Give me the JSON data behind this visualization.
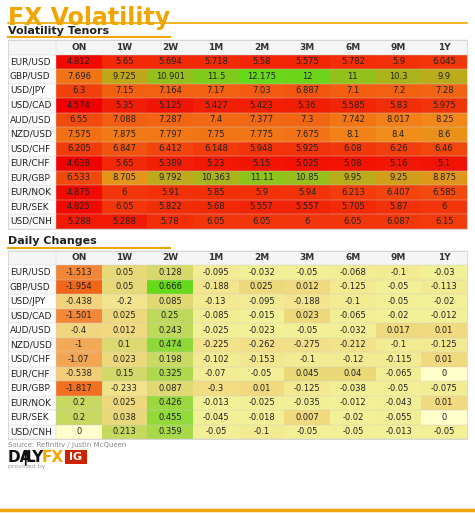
{
  "title": "FX Volatility",
  "section1": "Volatility Tenors",
  "section2": "Daily Changes",
  "col_headers": [
    "ON",
    "1W",
    "2W",
    "1M",
    "2M",
    "3M",
    "6M",
    "9M",
    "1Y"
  ],
  "vol_rows": [
    {
      "pair": "EUR/USD",
      "vals": [
        4.812,
        5.65,
        5.694,
        5.718,
        5.58,
        5.575,
        5.782,
        5.9,
        6.045
      ]
    },
    {
      "pair": "GBP/USD",
      "vals": [
        7.696,
        9.725,
        10.901,
        11.5,
        12.175,
        12,
        11,
        10.3,
        9.9
      ]
    },
    {
      "pair": "USD/JPY",
      "vals": [
        6.3,
        7.15,
        7.164,
        7.17,
        7.03,
        6.887,
        7.1,
        7.2,
        7.28
      ]
    },
    {
      "pair": "USD/CAD",
      "vals": [
        4.574,
        5.35,
        5.125,
        5.427,
        5.423,
        5.36,
        5.585,
        5.83,
        5.975
      ]
    },
    {
      "pair": "AUD/USD",
      "vals": [
        6.55,
        7.088,
        7.287,
        7.4,
        7.377,
        7.3,
        7.742,
        8.017,
        8.25
      ]
    },
    {
      "pair": "NZD/USD",
      "vals": [
        7.575,
        7.875,
        7.797,
        7.75,
        7.775,
        7.675,
        8.1,
        8.4,
        8.6
      ]
    },
    {
      "pair": "USD/CHF",
      "vals": [
        6.205,
        6.847,
        6.412,
        6.148,
        5.948,
        5.925,
        6.08,
        6.26,
        6.46
      ]
    },
    {
      "pair": "EUR/CHF",
      "vals": [
        4.638,
        5.65,
        5.389,
        5.23,
        5.15,
        5.025,
        5.08,
        5.16,
        5.1
      ]
    },
    {
      "pair": "EUR/GBP",
      "vals": [
        6.533,
        8.705,
        9.792,
        10.363,
        11.11,
        10.85,
        9.95,
        9.25,
        8.875
      ]
    },
    {
      "pair": "EUR/NOK",
      "vals": [
        4.875,
        6,
        5.91,
        5.85,
        5.9,
        5.94,
        6.213,
        6.407,
        6.585
      ]
    },
    {
      "pair": "EUR/SEK",
      "vals": [
        4.825,
        6.05,
        5.822,
        5.68,
        5.557,
        5.557,
        5.705,
        5.87,
        6
      ]
    },
    {
      "pair": "USD/CNH",
      "vals": [
        5.288,
        5.288,
        5.78,
        6.05,
        6.05,
        6,
        6.05,
        6.087,
        6.15
      ]
    }
  ],
  "chg_rows": [
    {
      "pair": "EUR/USD",
      "vals": [
        -1.513,
        0.05,
        0.128,
        -0.095,
        -0.032,
        -0.05,
        -0.068,
        -0.1,
        -0.03
      ]
    },
    {
      "pair": "GBP/USD",
      "vals": [
        -1.954,
        0.05,
        0.666,
        -0.188,
        0.025,
        0.012,
        -0.125,
        -0.05,
        -0.113
      ]
    },
    {
      "pair": "USD/JPY",
      "vals": [
        -0.438,
        -0.2,
        0.085,
        -0.13,
        -0.095,
        -0.188,
        -0.1,
        -0.05,
        -0.02
      ]
    },
    {
      "pair": "USD/CAD",
      "vals": [
        -1.501,
        0.025,
        0.25,
        -0.085,
        -0.015,
        0.023,
        -0.065,
        -0.02,
        -0.012
      ]
    },
    {
      "pair": "AUD/USD",
      "vals": [
        -0.4,
        0.012,
        0.243,
        -0.025,
        -0.023,
        -0.05,
        -0.032,
        0.017,
        0.01
      ]
    },
    {
      "pair": "NZD/USD",
      "vals": [
        -1,
        0.1,
        0.474,
        -0.225,
        -0.262,
        -0.275,
        -0.212,
        -0.1,
        -0.125
      ]
    },
    {
      "pair": "USD/CHF",
      "vals": [
        -1.07,
        0.023,
        0.198,
        -0.102,
        -0.153,
        -0.1,
        -0.12,
        -0.115,
        0.01
      ]
    },
    {
      "pair": "EUR/CHF",
      "vals": [
        -0.538,
        0.15,
        0.325,
        -0.07,
        -0.05,
        0.045,
        0.04,
        -0.065,
        0
      ]
    },
    {
      "pair": "EUR/GBP",
      "vals": [
        -1.817,
        -0.233,
        0.087,
        -0.3,
        0.01,
        -0.125,
        -0.038,
        -0.05,
        -0.075
      ]
    },
    {
      "pair": "EUR/NOK",
      "vals": [
        0.2,
        0.025,
        0.426,
        -0.013,
        -0.025,
        -0.035,
        -0.012,
        -0.043,
        0.01
      ]
    },
    {
      "pair": "EUR/SEK",
      "vals": [
        0.2,
        0.038,
        0.455,
        -0.045,
        -0.018,
        0.007,
        -0.02,
        -0.055,
        0
      ]
    },
    {
      "pair": "USD/CNH",
      "vals": [
        0,
        0.213,
        0.359,
        -0.05,
        -0.1,
        -0.05,
        -0.05,
        -0.013,
        -0.05
      ]
    }
  ],
  "source_text": "Source: Refinitiv / Justin McQueen",
  "bg_color": "#ffffff",
  "title_color": "#f0a500",
  "orange_line_color": "#f0a500",
  "section_header_color": "#222222",
  "row_label_color": "#222222",
  "table_header_color": "#333333",
  "grid_line_color": "#cccccc"
}
